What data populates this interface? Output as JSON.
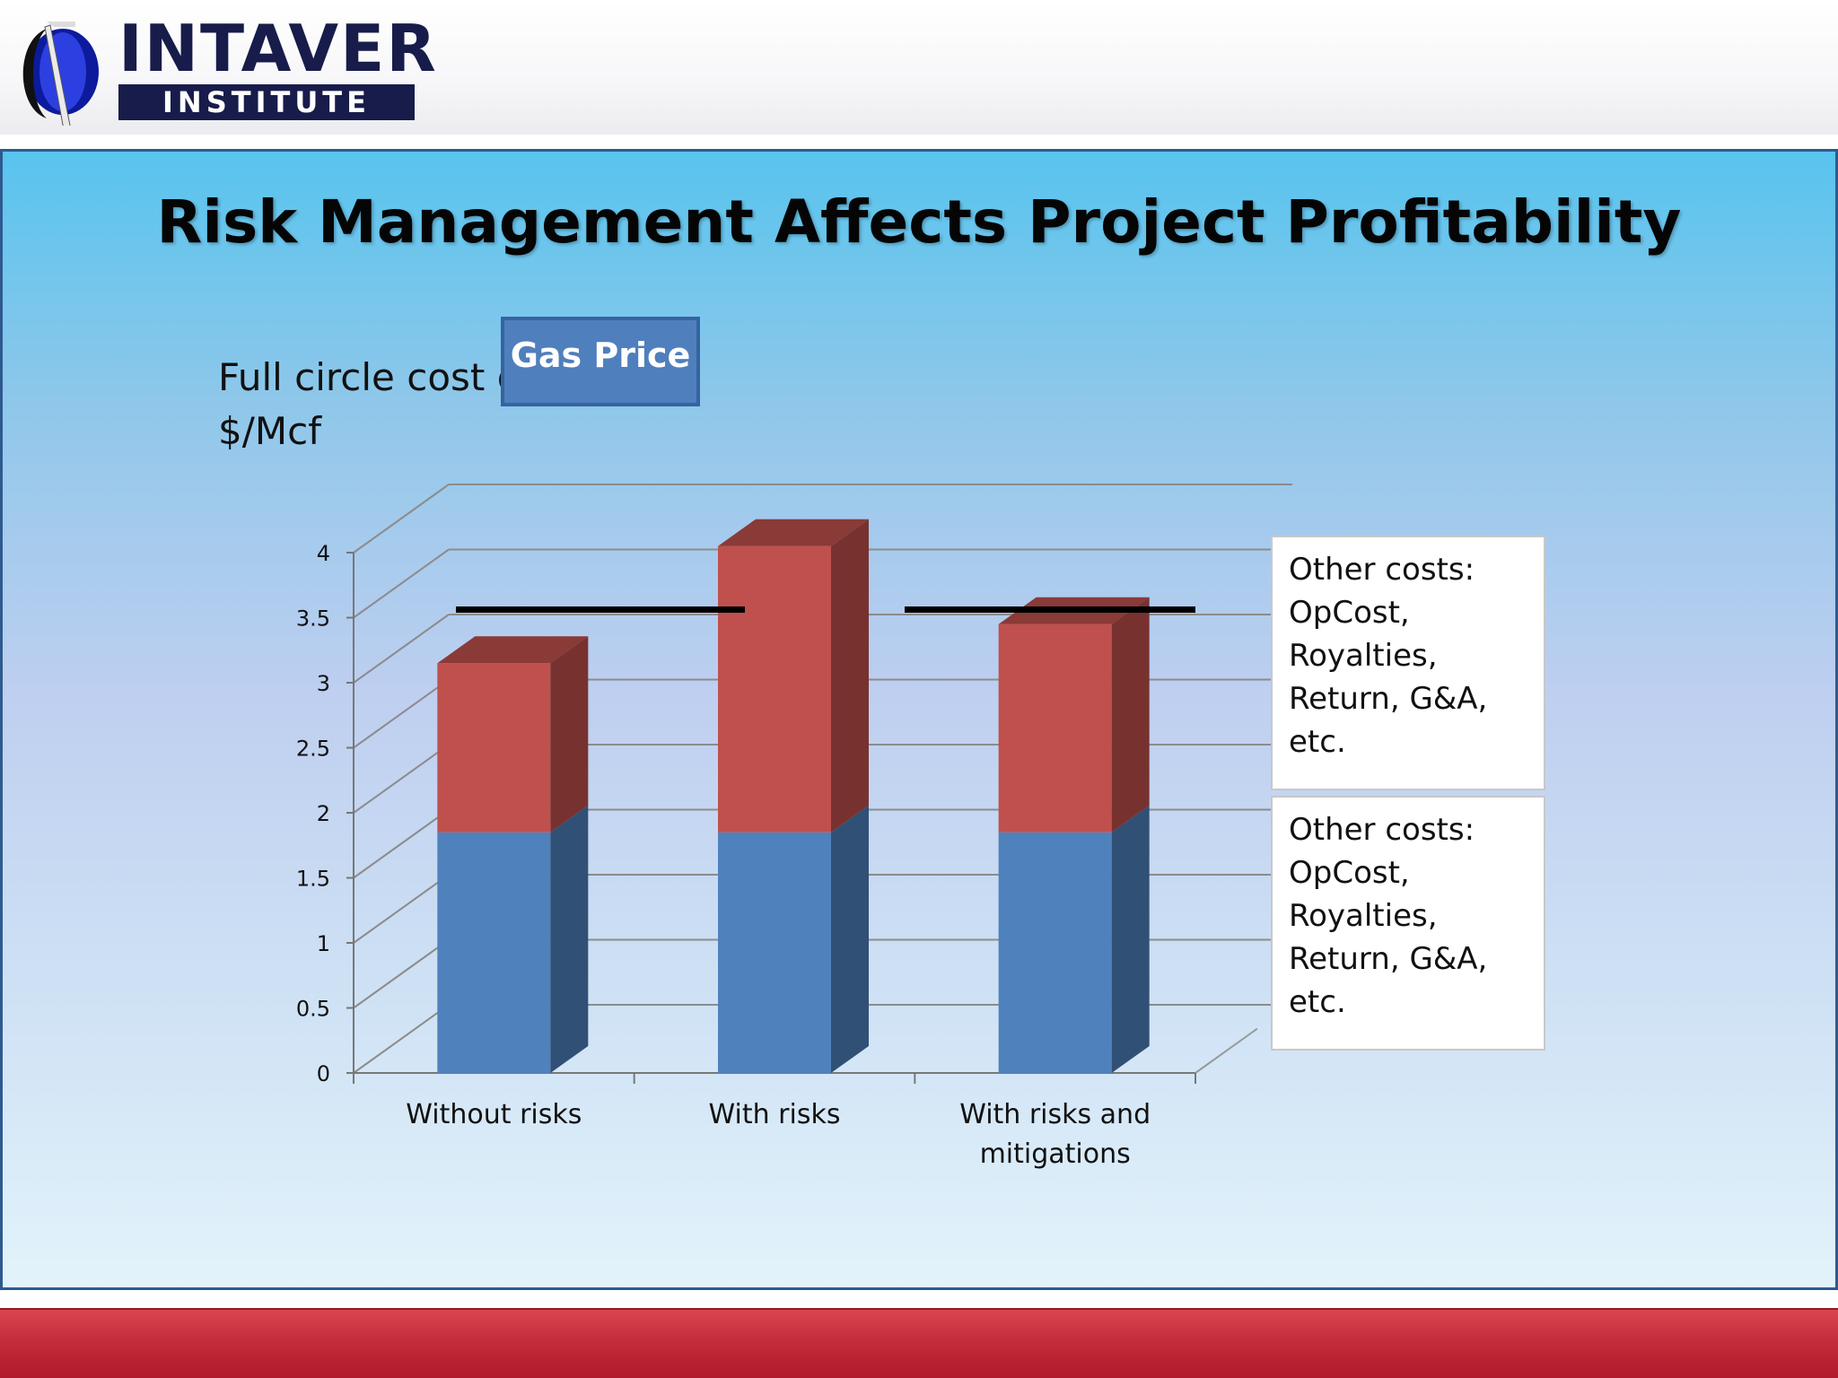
{
  "header": {
    "logo_word_top": "INTAVER",
    "logo_word_bottom": "INSTITUTE",
    "logo_icon": "intaver-crescent-logo-icon"
  },
  "slide": {
    "title": "Risk Management Affects Project Profitability",
    "y_label_line1": "Full circle cost of gas",
    "y_label_line2": "$/Mcf"
  },
  "annotations": {
    "gas_price_label": "Gas Price",
    "legend_top": "Other costs:\nOpCost,\nRoyalties,\nReturn, G&A,\netc.",
    "legend_bottom": "Other costs:\nOpCost,\nRoyalties,\nReturn, G&A,\netc."
  },
  "colors": {
    "blue_series": "#4f81bd",
    "red_series": "#c0504d",
    "footer_red": "#c32a3a",
    "title_text": "#050505"
  },
  "chart_data": {
    "type": "bar",
    "stacked": true,
    "three_d": true,
    "categories": [
      "Without risks",
      "With risks",
      "With risks and\nmitigations"
    ],
    "series": [
      {
        "values": [
          1.85,
          1.85,
          1.85
        ],
        "color": "#4f81bd"
      },
      {
        "values": [
          1.3,
          2.2,
          1.6
        ],
        "color": "#c0504d"
      }
    ],
    "ylim": [
      0,
      4
    ],
    "yticks": [
      "0",
      "0.5",
      "1",
      "1.5",
      "2",
      "2.5",
      "3",
      "3.5",
      "4"
    ],
    "reference_line": {
      "label": "Gas Price",
      "value": 3.7
    },
    "grid": true
  }
}
